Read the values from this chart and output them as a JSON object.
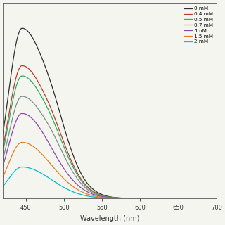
{
  "title": "",
  "xlabel": "Wavelength (nm)",
  "ylabel": "",
  "xlim": [
    420,
    700
  ],
  "ylim": [
    0,
    1.15
  ],
  "x_ticks": [
    450,
    500,
    550,
    600,
    650,
    700
  ],
  "legend_labels": [
    "0 mM",
    "0.4 mM",
    "0.5 mM",
    "0.7 mM",
    "1mM",
    "1.5 mM",
    "2 mM"
  ],
  "line_colors": [
    "#2f2f2f",
    "#c0392b",
    "#27ae60",
    "#7f8c8d",
    "#8e44ad",
    "#e67e22",
    "#00bcd4"
  ],
  "peak_wavelength": 445,
  "peak_heights": [
    1.0,
    0.78,
    0.72,
    0.6,
    0.5,
    0.33,
    0.185
  ],
  "background_color": "#f5f5f0"
}
